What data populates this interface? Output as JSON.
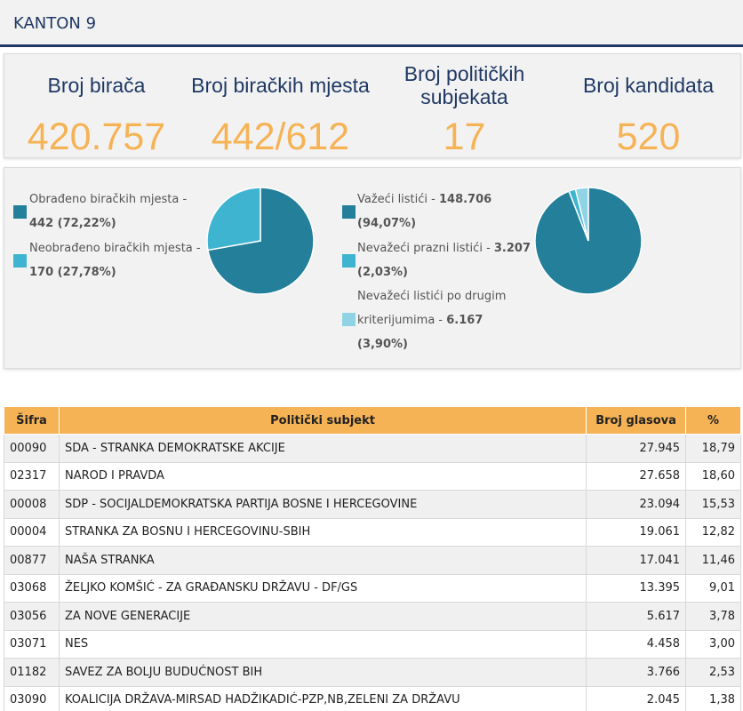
{
  "header": {
    "title": "KANTON 9"
  },
  "stats": [
    {
      "label": "Broj birača",
      "value": "420.757"
    },
    {
      "label": "Broj biračkih mjesta",
      "value": "442/612"
    },
    {
      "label": "Broj političkih subjekata",
      "value": "17"
    },
    {
      "label": "Broj kandidata",
      "value": "520"
    }
  ],
  "colors": {
    "dark_teal": "#237f9a",
    "light_teal": "#3fb4d0",
    "pale_teal": "#8fd3e4",
    "orange": "#f6b356",
    "navy": "#1f3864"
  },
  "polling_chart": {
    "items": [
      {
        "label_line1": "Obrađeno biračkih mjesta -",
        "label_line2": "442 (72,22%)",
        "percent": 72.22,
        "color": "#237f9a"
      },
      {
        "label_line1": "Neobrađeno biračkih mjesta -",
        "label_line2": "170 (27,78%)",
        "percent": 27.78,
        "color": "#3fb4d0"
      }
    ]
  },
  "ballots_chart": {
    "items": [
      {
        "label_line1": "Važeći listići - ",
        "value": "148.706",
        "label_line2": "(94,07%)",
        "percent": 94.07,
        "color": "#237f9a"
      },
      {
        "label_line1": "Nevažeći prazni listići - ",
        "value": "3.207",
        "label_line2": "(2,03%)",
        "percent": 2.03,
        "color": "#3fb4d0"
      },
      {
        "label_line0": "Nevažeći listići po drugim",
        "label_line1": "kriterijumima - ",
        "value": "6.167",
        "label_line2": "(3,90%)",
        "percent": 3.9,
        "color": "#8fd3e4"
      }
    ]
  },
  "table": {
    "headers": [
      "Šifra",
      "Politički subjekt",
      "Broj glasova",
      "%"
    ],
    "rows": [
      [
        "00090",
        "SDA - STRANKA DEMOKRATSKE AKCIJE",
        "27.945",
        "18,79"
      ],
      [
        "02317",
        "NAROD I PRAVDA",
        "27.658",
        "18,60"
      ],
      [
        "00008",
        "SDP - SOCIJALDEMOKRATSKA PARTIJA BOSNE I HERCEGOVINE",
        "23.094",
        "15,53"
      ],
      [
        "00004",
        "STRANKA ZA BOSNU I HERCEGOVINU-SBIH",
        "19.061",
        "12,82"
      ],
      [
        "00877",
        "NAŠA STRANKA",
        "17.041",
        "11,46"
      ],
      [
        "03068",
        "ŽELJKO KOMŠIĆ - ZA GRAĐANSKU DRŽAVU - DF/GS",
        "13.395",
        "9,01"
      ],
      [
        "03056",
        "ZA NOVE GENERACIJE",
        "5.617",
        "3,78"
      ],
      [
        "03071",
        "NES",
        "4.458",
        "3,00"
      ],
      [
        "01182",
        "SAVEZ ZA BOLJU BUDUĆNOST BIH",
        "3.766",
        "2,53"
      ],
      [
        "03090",
        "KOALICIJA DRŽAVA-MIRSAD HADŽIKADIĆ-PZP,NB,ZELENI ZA DRŽAVU",
        "2.045",
        "1,38"
      ]
    ]
  }
}
